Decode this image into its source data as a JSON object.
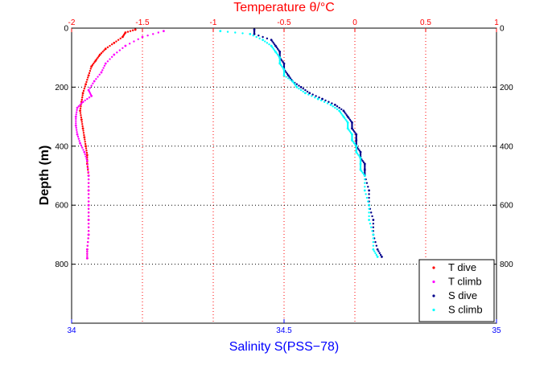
{
  "chart_data": {
    "type": "scatter",
    "title": "",
    "top_axis": {
      "label": "Temperature θ/°C",
      "range": [
        -2,
        1
      ],
      "ticks": [
        -2,
        -1.5,
        -1,
        -0.5,
        0,
        0.5,
        1
      ],
      "tick_labels": [
        "-2",
        "-1.5",
        "-1",
        "-0.5",
        "0",
        "0.5",
        "1"
      ],
      "color": "#ff0000"
    },
    "bottom_axis": {
      "label": "Salinity S(PSS−78)",
      "range": [
        34,
        35
      ],
      "ticks": [
        34,
        34.5,
        35
      ],
      "tick_labels": [
        "34",
        "34.5",
        "35"
      ],
      "color": "#0000ff"
    },
    "y_axis": {
      "label": "Depth (m)",
      "range": [
        0,
        1000
      ],
      "reversed": true,
      "ticks": [
        0,
        200,
        400,
        600,
        800
      ],
      "tick_labels": [
        "0",
        "200",
        "400",
        "600",
        "800"
      ]
    },
    "grid": true,
    "legend_position": "bottom-right",
    "series": [
      {
        "name": "T dive",
        "axis": "top",
        "color": "#ff0000",
        "points": [
          [
            -1.55,
            5
          ],
          [
            -1.62,
            15
          ],
          [
            -1.64,
            30
          ],
          [
            -1.7,
            50
          ],
          [
            -1.76,
            70
          ],
          [
            -1.8,
            90
          ],
          [
            -1.83,
            110
          ],
          [
            -1.86,
            130
          ],
          [
            -1.88,
            160
          ],
          [
            -1.9,
            190
          ],
          [
            -1.92,
            220
          ],
          [
            -1.93,
            250
          ],
          [
            -1.94,
            280
          ],
          [
            -1.93,
            310
          ],
          [
            -1.92,
            340
          ],
          [
            -1.91,
            370
          ],
          [
            -1.9,
            400
          ],
          [
            -1.89,
            430
          ],
          [
            -1.89,
            460
          ],
          [
            -1.88,
            500
          ],
          [
            -1.88,
            550
          ],
          [
            -1.88,
            600
          ],
          [
            -1.88,
            650
          ],
          [
            -1.88,
            700
          ],
          [
            -1.89,
            750
          ],
          [
            -1.89,
            780
          ]
        ]
      },
      {
        "name": "T climb",
        "axis": "top",
        "color": "#ff00ff",
        "points": [
          [
            -1.35,
            10
          ],
          [
            -1.5,
            30
          ],
          [
            -1.62,
            60
          ],
          [
            -1.7,
            90
          ],
          [
            -1.76,
            120
          ],
          [
            -1.79,
            150
          ],
          [
            -1.84,
            180
          ],
          [
            -1.88,
            210
          ],
          [
            -1.86,
            230
          ],
          [
            -1.92,
            250
          ],
          [
            -1.96,
            270
          ],
          [
            -1.97,
            300
          ],
          [
            -1.97,
            330
          ],
          [
            -1.96,
            360
          ],
          [
            -1.94,
            390
          ],
          [
            -1.91,
            420
          ],
          [
            -1.89,
            450
          ],
          [
            -1.88,
            500
          ],
          [
            -1.88,
            550
          ],
          [
            -1.88,
            600
          ],
          [
            -1.88,
            650
          ],
          [
            -1.88,
            700
          ],
          [
            -1.89,
            750
          ],
          [
            -1.89,
            780
          ]
        ]
      },
      {
        "name": "S dive",
        "axis": "bottom",
        "color": "#00008b",
        "points": [
          [
            34.43,
            5
          ],
          [
            34.43,
            20
          ],
          [
            34.47,
            40
          ],
          [
            34.48,
            60
          ],
          [
            34.49,
            80
          ],
          [
            34.49,
            100
          ],
          [
            34.5,
            120
          ],
          [
            34.5,
            140
          ],
          [
            34.51,
            160
          ],
          [
            34.52,
            180
          ],
          [
            34.54,
            200
          ],
          [
            34.56,
            220
          ],
          [
            34.59,
            240
          ],
          [
            34.62,
            260
          ],
          [
            34.64,
            280
          ],
          [
            34.65,
            300
          ],
          [
            34.66,
            320
          ],
          [
            34.66,
            340
          ],
          [
            34.67,
            360
          ],
          [
            34.67,
            380
          ],
          [
            34.67,
            400
          ],
          [
            34.68,
            420
          ],
          [
            34.68,
            440
          ],
          [
            34.69,
            460
          ],
          [
            34.69,
            480
          ],
          [
            34.69,
            500
          ],
          [
            34.7,
            550
          ],
          [
            34.7,
            600
          ],
          [
            34.71,
            650
          ],
          [
            34.71,
            700
          ],
          [
            34.72,
            750
          ],
          [
            34.73,
            775
          ]
        ]
      },
      {
        "name": "S climb",
        "axis": "bottom",
        "color": "#00ffff",
        "points": [
          [
            34.35,
            10
          ],
          [
            34.42,
            20
          ],
          [
            34.45,
            40
          ],
          [
            34.47,
            60
          ],
          [
            34.48,
            80
          ],
          [
            34.49,
            100
          ],
          [
            34.49,
            120
          ],
          [
            34.5,
            140
          ],
          [
            34.5,
            160
          ],
          [
            34.52,
            180
          ],
          [
            34.53,
            200
          ],
          [
            34.55,
            220
          ],
          [
            34.58,
            240
          ],
          [
            34.61,
            260
          ],
          [
            34.63,
            280
          ],
          [
            34.64,
            300
          ],
          [
            34.65,
            320
          ],
          [
            34.65,
            340
          ],
          [
            34.66,
            360
          ],
          [
            34.66,
            380
          ],
          [
            34.67,
            400
          ],
          [
            34.67,
            420
          ],
          [
            34.68,
            440
          ],
          [
            34.68,
            460
          ],
          [
            34.68,
            480
          ],
          [
            34.69,
            500
          ],
          [
            34.69,
            550
          ],
          [
            34.7,
            600
          ],
          [
            34.7,
            650
          ],
          [
            34.71,
            700
          ],
          [
            34.71,
            750
          ],
          [
            34.72,
            775
          ]
        ]
      }
    ]
  }
}
